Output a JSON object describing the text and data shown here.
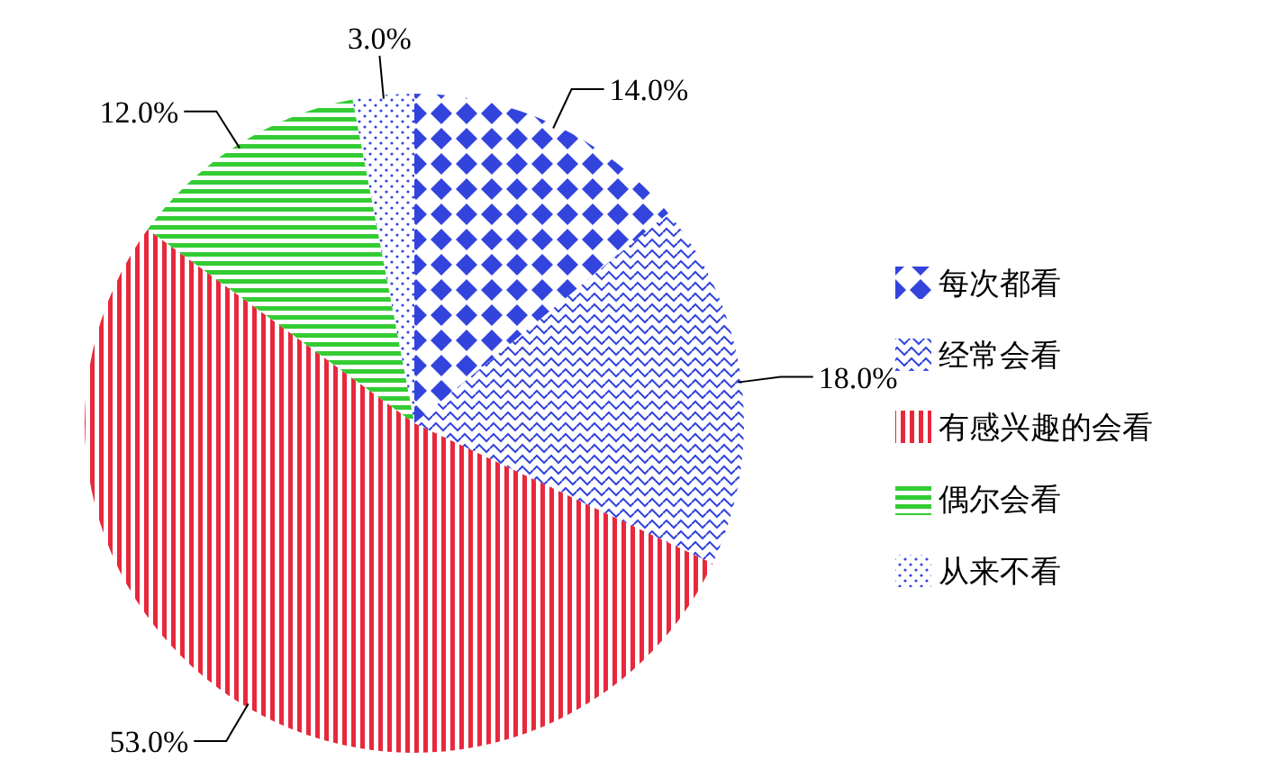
{
  "chart_data": {
    "type": "pie",
    "categories": [
      "每次都看",
      "经常会看",
      "有感兴趣的会看",
      "偶尔会看",
      "从来不看"
    ],
    "values": [
      14,
      18,
      53,
      12,
      3
    ],
    "value_labels": [
      "14.0%",
      "18.0%",
      "53.0%",
      "12.0%",
      "3.0%"
    ],
    "colors": [
      "#3344dd",
      "#3344dd",
      "#e8283c",
      "#33cc33",
      "#3344dd"
    ],
    "legend": "right"
  }
}
